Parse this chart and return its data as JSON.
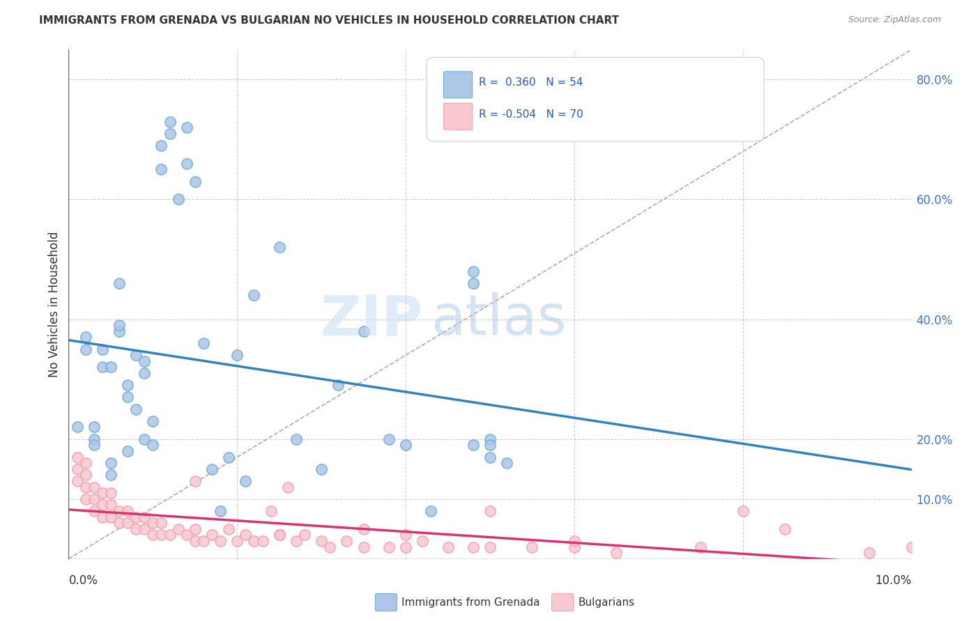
{
  "title": "IMMIGRANTS FROM GRENADA VS BULGARIAN NO VEHICLES IN HOUSEHOLD CORRELATION CHART",
  "source": "Source: ZipAtlas.com",
  "ylabel": "No Vehicles in Household",
  "right_yticks": [
    "10.0%",
    "20.0%",
    "40.0%",
    "60.0%",
    "80.0%"
  ],
  "right_ytick_vals": [
    0.1,
    0.2,
    0.4,
    0.6,
    0.8
  ],
  "blue_color": "#6baed6",
  "blue_face": "#aec6e8",
  "pink_color": "#f4a0b0",
  "pink_face": "#f9c8d0",
  "trend_blue": "#3182bd",
  "trend_pink": "#d63470",
  "watermark_zip": "ZIP",
  "watermark_atlas": "atlas",
  "background_color": "#ffffff",
  "grenada_x": [
    0.001,
    0.002,
    0.002,
    0.003,
    0.003,
    0.003,
    0.004,
    0.004,
    0.005,
    0.005,
    0.005,
    0.006,
    0.006,
    0.006,
    0.007,
    0.007,
    0.007,
    0.008,
    0.008,
    0.009,
    0.009,
    0.009,
    0.01,
    0.01,
    0.011,
    0.011,
    0.012,
    0.012,
    0.013,
    0.014,
    0.014,
    0.015,
    0.016,
    0.017,
    0.018,
    0.019,
    0.02,
    0.021,
    0.022,
    0.025,
    0.027,
    0.03,
    0.032,
    0.035,
    0.038,
    0.04,
    0.043,
    0.048,
    0.05,
    0.052,
    0.048,
    0.05,
    0.048,
    0.05
  ],
  "grenada_y": [
    0.22,
    0.35,
    0.37,
    0.22,
    0.2,
    0.19,
    0.32,
    0.35,
    0.14,
    0.16,
    0.32,
    0.38,
    0.39,
    0.46,
    0.18,
    0.27,
    0.29,
    0.25,
    0.34,
    0.2,
    0.31,
    0.33,
    0.19,
    0.23,
    0.65,
    0.69,
    0.71,
    0.73,
    0.6,
    0.66,
    0.72,
    0.63,
    0.36,
    0.15,
    0.08,
    0.17,
    0.34,
    0.13,
    0.44,
    0.52,
    0.2,
    0.15,
    0.29,
    0.38,
    0.2,
    0.19,
    0.08,
    0.19,
    0.17,
    0.16,
    0.46,
    0.2,
    0.48,
    0.19
  ],
  "bulgarian_x": [
    0.001,
    0.001,
    0.001,
    0.002,
    0.002,
    0.002,
    0.002,
    0.003,
    0.003,
    0.003,
    0.004,
    0.004,
    0.004,
    0.005,
    0.005,
    0.005,
    0.006,
    0.006,
    0.007,
    0.007,
    0.008,
    0.008,
    0.009,
    0.009,
    0.01,
    0.01,
    0.011,
    0.011,
    0.012,
    0.013,
    0.014,
    0.015,
    0.015,
    0.016,
    0.017,
    0.018,
    0.019,
    0.02,
    0.021,
    0.022,
    0.023,
    0.024,
    0.025,
    0.026,
    0.027,
    0.028,
    0.03,
    0.031,
    0.033,
    0.035,
    0.038,
    0.04,
    0.042,
    0.045,
    0.048,
    0.05,
    0.055,
    0.06,
    0.065,
    0.08,
    0.085,
    0.015,
    0.025,
    0.035,
    0.04,
    0.05,
    0.06,
    0.075,
    0.095,
    0.1
  ],
  "bulgarian_y": [
    0.13,
    0.15,
    0.17,
    0.1,
    0.12,
    0.14,
    0.16,
    0.08,
    0.1,
    0.12,
    0.07,
    0.09,
    0.11,
    0.07,
    0.09,
    0.11,
    0.06,
    0.08,
    0.06,
    0.08,
    0.05,
    0.07,
    0.05,
    0.07,
    0.04,
    0.06,
    0.04,
    0.06,
    0.04,
    0.05,
    0.04,
    0.03,
    0.05,
    0.03,
    0.04,
    0.03,
    0.05,
    0.03,
    0.04,
    0.03,
    0.03,
    0.08,
    0.04,
    0.12,
    0.03,
    0.04,
    0.03,
    0.02,
    0.03,
    0.02,
    0.02,
    0.02,
    0.03,
    0.02,
    0.02,
    0.08,
    0.02,
    0.02,
    0.01,
    0.08,
    0.05,
    0.13,
    0.04,
    0.05,
    0.04,
    0.02,
    0.03,
    0.02,
    0.01,
    0.02
  ],
  "xmin": 0.0,
  "xmax": 0.1,
  "ymin": 0.0,
  "ymax": 0.85
}
